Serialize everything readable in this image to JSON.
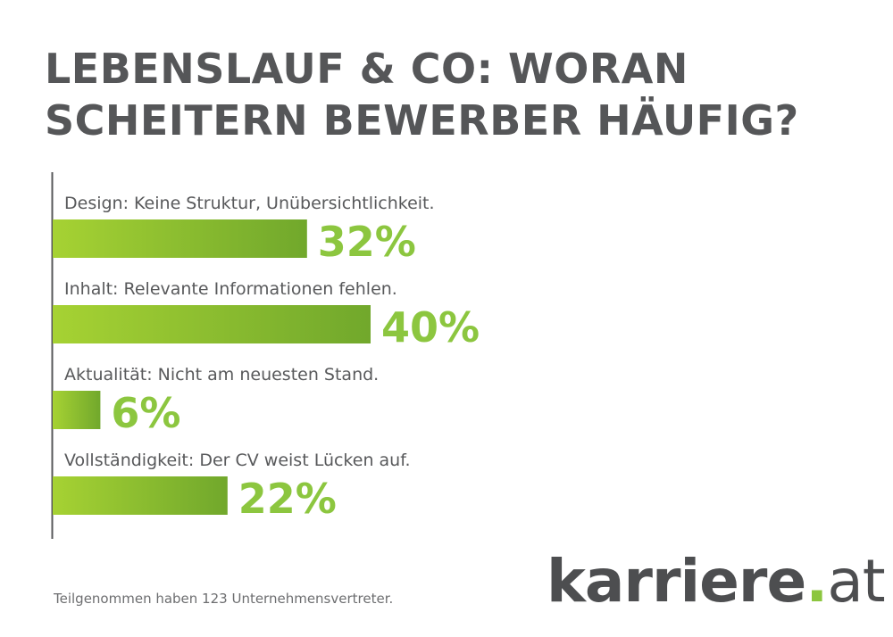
{
  "title_lines": [
    "LEBENSLAUF & CO: WORAN",
    "SCHEITERN BEWERBER HÄUFIG?"
  ],
  "chart_data": {
    "type": "bar",
    "orientation": "horizontal",
    "title": "LEBENSLAUF & CO: WORAN SCHEITERN BEWERBER HÄUFIG?",
    "categories": [
      "Design: Keine Struktur, Unübersichtlichkeit.",
      "Inhalt: Relevante Informationen fehlen.",
      "Aktualität: Nicht am neuesten Stand.",
      "Vollständigkeit: Der CV weist Lücken auf."
    ],
    "values": [
      32,
      40,
      6,
      22
    ],
    "value_labels": [
      "32%",
      "40%",
      "6%",
      "22%"
    ],
    "unit": "%",
    "xlim": [
      0,
      40
    ],
    "grid": false,
    "colors": {
      "bar_start": "#a6d233",
      "bar_end": "#71a82c",
      "value_text": "#8cc63f",
      "axis": "#58595b"
    }
  },
  "footnote": "Teilgenommen haben 123 Unternehmensvertreter.",
  "logo": {
    "name": "karriere",
    "dot": ".",
    "tld": "at"
  }
}
